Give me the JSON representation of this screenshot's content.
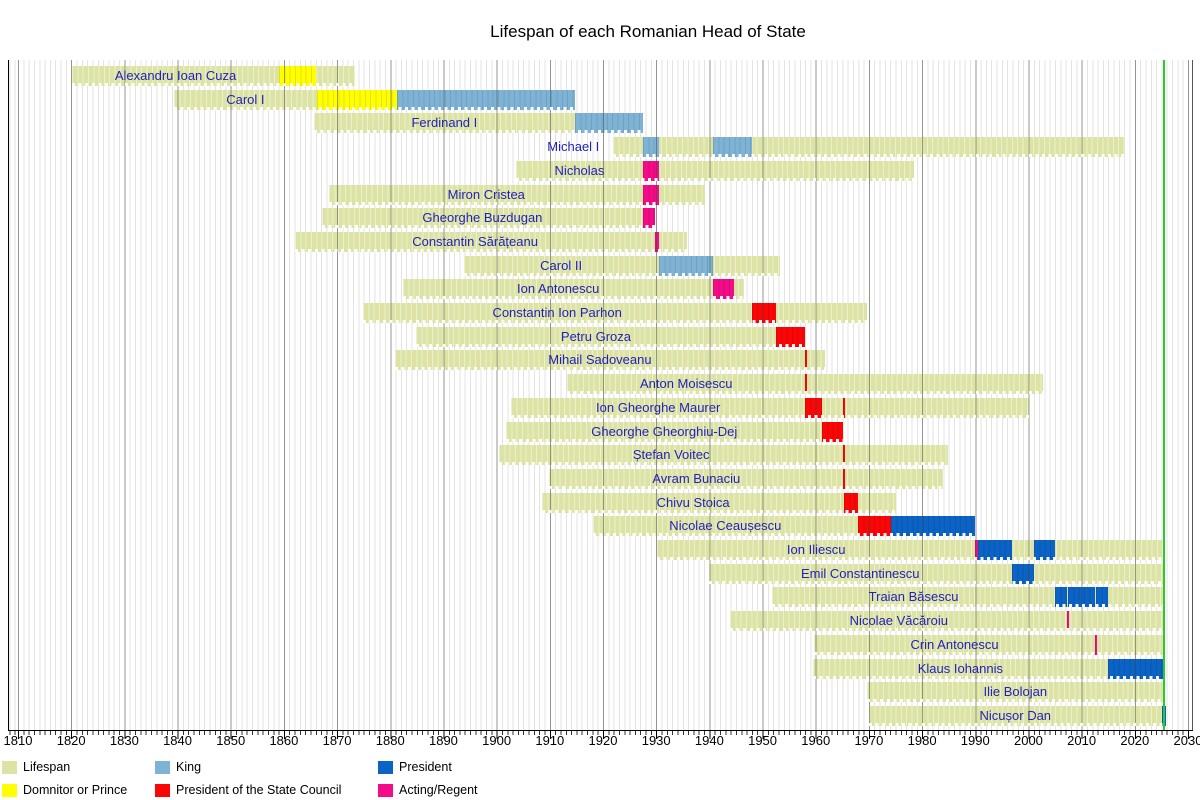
{
  "title": "Lifespan of each Romanian Head of State",
  "chart_data": {
    "type": "timeline",
    "x_axis": {
      "min": 1810,
      "max": 2030,
      "tick_step": 10,
      "ticks": [
        1810,
        1820,
        1830,
        1840,
        1850,
        1860,
        1870,
        1880,
        1890,
        1900,
        1910,
        1920,
        1930,
        1940,
        1950,
        1960,
        1970,
        1980,
        1990,
        2000,
        2010,
        2020,
        2030
      ]
    },
    "today_year": 2025.42,
    "colors": {
      "lifespan": "#dce3a4",
      "prince": "#ffff00",
      "king": "#7fb3d5",
      "council": "#fa0606",
      "president": "#0b63c5",
      "acting": "#f30b87",
      "today_line": "#2ec82e"
    },
    "legend": [
      {
        "label": "Lifespan",
        "color": "lifespan"
      },
      {
        "label": "Domnitor or Prince",
        "color": "prince"
      },
      {
        "label": "King",
        "color": "king"
      },
      {
        "label": "President of the State Council",
        "color": "council"
      },
      {
        "label": "President",
        "color": "president"
      },
      {
        "label": "Acting/Regent",
        "color": "acting"
      }
    ],
    "people": [
      {
        "name": "Alexandru Ioan Cuza",
        "birth": 1820.2,
        "death": 1873.4,
        "terms": [
          {
            "role": "prince",
            "start": 1859.05,
            "end": 1866.1
          }
        ]
      },
      {
        "name": "Carol I",
        "birth": 1839.3,
        "death": 1914.75,
        "terms": [
          {
            "role": "prince",
            "start": 1866.2,
            "end": 1881.2
          },
          {
            "role": "king",
            "start": 1881.2,
            "end": 1914.75
          }
        ]
      },
      {
        "name": "Ferdinand I",
        "birth": 1865.6,
        "death": 1927.55,
        "terms": [
          {
            "role": "king",
            "start": 1914.75,
            "end": 1927.55
          }
        ]
      },
      {
        "name": "Michael I",
        "birth": 1921.8,
        "death": 2017.95,
        "terms": [
          {
            "role": "king",
            "start": 1927.55,
            "end": 1930.45
          },
          {
            "role": "king",
            "start": 1940.7,
            "end": 1948.0
          }
        ]
      },
      {
        "name": "Nicholas",
        "birth": 1903.6,
        "death": 1978.55,
        "terms": [
          {
            "role": "acting",
            "start": 1927.55,
            "end": 1930.45
          }
        ]
      },
      {
        "name": "Miron Cristea",
        "birth": 1868.55,
        "death": 1939.2,
        "terms": [
          {
            "role": "acting",
            "start": 1927.55,
            "end": 1930.45
          }
        ]
      },
      {
        "name": "Gheorghe Buzdugan",
        "birth": 1867.1,
        "death": 1929.78,
        "terms": [
          {
            "role": "acting",
            "start": 1927.55,
            "end": 1929.78
          }
        ]
      },
      {
        "name": "Constantin Sărățeanu",
        "birth": 1862.1,
        "death": 1935.85,
        "terms": [
          {
            "role": "acting",
            "start": 1929.8,
            "end": 1930.45
          }
        ]
      },
      {
        "name": "Carol II",
        "birth": 1893.8,
        "death": 1953.3,
        "terms": [
          {
            "role": "king",
            "start": 1930.45,
            "end": 1940.7
          }
        ]
      },
      {
        "name": "Ion Antonescu",
        "birth": 1882.45,
        "death": 1946.45,
        "terms": [
          {
            "role": "acting",
            "start": 1940.7,
            "end": 1944.65
          }
        ]
      },
      {
        "name": "Constantin Ion Parhon",
        "birth": 1874.8,
        "death": 1969.6,
        "terms": [
          {
            "role": "council",
            "start": 1947.95,
            "end": 1952.45
          }
        ]
      },
      {
        "name": "Petru Groza",
        "birth": 1884.9,
        "death": 1958.05,
        "terms": [
          {
            "role": "council",
            "start": 1952.45,
            "end": 1958.05
          }
        ]
      },
      {
        "name": "Mihail Sadoveanu",
        "birth": 1880.85,
        "death": 1961.8,
        "terms": [
          {
            "role": "council",
            "start": 1958.0,
            "end": 1958.12
          }
        ]
      },
      {
        "name": "Anton Moisescu",
        "birth": 1913.3,
        "death": 2002.7,
        "terms": [
          {
            "role": "council",
            "start": 1958.0,
            "end": 1958.12
          }
        ]
      },
      {
        "name": "Ion Gheorghe Maurer",
        "birth": 1902.7,
        "death": 2000.1,
        "terms": [
          {
            "role": "council",
            "start": 1958.05,
            "end": 1961.2
          },
          {
            "role": "council",
            "start": 1965.2,
            "end": 1965.35
          }
        ]
      },
      {
        "name": "Gheorghe Gheorghiu-Dej",
        "birth": 1901.85,
        "death": 1965.2,
        "terms": [
          {
            "role": "council",
            "start": 1961.2,
            "end": 1965.2
          }
        ]
      },
      {
        "name": "Ștefan Voitec",
        "birth": 1900.45,
        "death": 1984.9,
        "terms": [
          {
            "role": "council",
            "start": 1965.2,
            "end": 1965.35
          }
        ]
      },
      {
        "name": "Avram Bunaciu",
        "birth": 1909.9,
        "death": 1983.85,
        "terms": [
          {
            "role": "council",
            "start": 1965.2,
            "end": 1965.35
          }
        ]
      },
      {
        "name": "Chivu Stoica",
        "birth": 1908.6,
        "death": 1975.1,
        "terms": [
          {
            "role": "council",
            "start": 1965.3,
            "end": 1967.95
          }
        ]
      },
      {
        "name": "Nicolae Ceaușescu",
        "birth": 1918.05,
        "death": 1989.97,
        "terms": [
          {
            "role": "council",
            "start": 1967.95,
            "end": 1974.2
          },
          {
            "role": "president",
            "start": 1974.2,
            "end": 1989.97
          }
        ]
      },
      {
        "name": "Ion Iliescu",
        "birth": 1930.2,
        "death": 2025.7,
        "terms": [
          {
            "role": "acting",
            "start": 1989.97,
            "end": 1990.5
          },
          {
            "role": "president",
            "start": 1990.5,
            "end": 1996.9
          },
          {
            "role": "president",
            "start": 2000.95,
            "end": 2004.95
          }
        ]
      },
      {
        "name": "Emil Constantinescu",
        "birth": 1939.85,
        "death": null,
        "terms": [
          {
            "role": "president",
            "start": 1996.9,
            "end": 2000.95
          }
        ]
      },
      {
        "name": "Traian Băsescu",
        "birth": 1951.85,
        "death": null,
        "terms": [
          {
            "role": "president",
            "start": 2004.95,
            "end": 2007.3
          },
          {
            "role": "president",
            "start": 2007.42,
            "end": 2012.5
          },
          {
            "role": "president",
            "start": 2012.68,
            "end": 2014.95
          }
        ]
      },
      {
        "name": "Nicolae Văcăroiu",
        "birth": 1943.95,
        "death": null,
        "terms": [
          {
            "role": "acting",
            "start": 2007.3,
            "end": 2007.42
          }
        ]
      },
      {
        "name": "Crin Antonescu",
        "birth": 1959.7,
        "death": null,
        "terms": [
          {
            "role": "acting",
            "start": 2012.5,
            "end": 2012.68
          }
        ]
      },
      {
        "name": "Klaus Iohannis",
        "birth": 1959.45,
        "death": null,
        "terms": [
          {
            "role": "president",
            "start": 2014.95,
            "end": 2025.3
          }
        ]
      },
      {
        "name": "Ilie Bolojan",
        "birth": 1969.6,
        "death": null,
        "terms": []
      },
      {
        "name": "Nicușor Dan",
        "birth": 1970.0,
        "death": 2025.8,
        "terms": [
          {
            "role": "president",
            "start": 2025.05,
            "end": 2025.8
          }
        ]
      }
    ]
  }
}
